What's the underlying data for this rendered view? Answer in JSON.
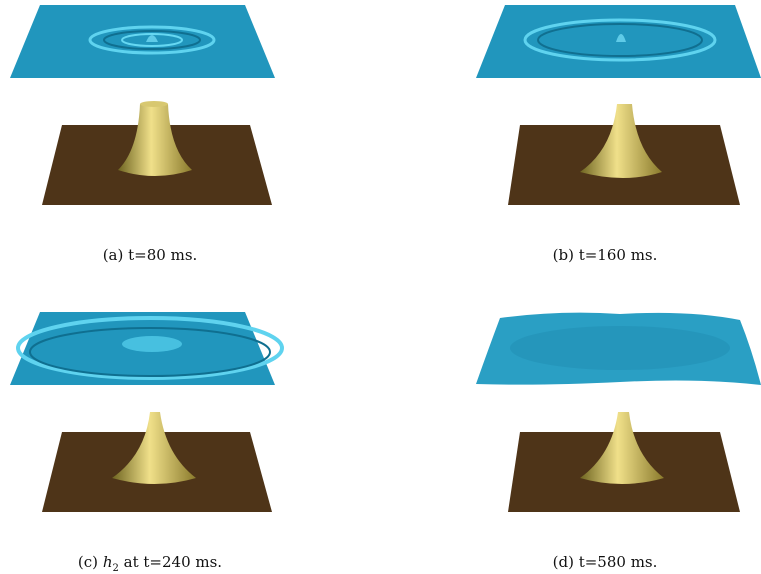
{
  "figure": {
    "panels": [
      {
        "label": "(a)",
        "text": "t=80 ms."
      },
      {
        "label": "(b)",
        "text": "t=160 ms."
      },
      {
        "label": "(c)",
        "symbol": "h",
        "subscript": "2",
        "text": "at t=240 ms."
      },
      {
        "label": "(d)",
        "text": "t=580 ms."
      }
    ]
  }
}
